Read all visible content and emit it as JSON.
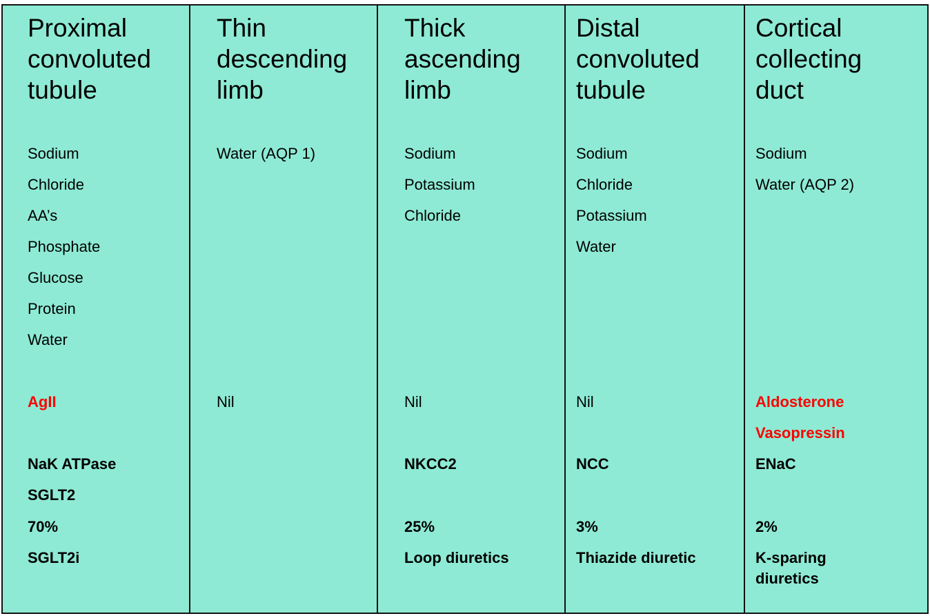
{
  "colors": {
    "background": "#8EEAD4",
    "highlight": "#FF0000",
    "border": "#111111"
  },
  "columns": [
    {
      "header": [
        "Proximal",
        "convoluted",
        "tubule"
      ],
      "reabsorbed": [
        "Sodium",
        "Chloride",
        "AA’s",
        "Phosphate",
        "Glucose",
        "Protein",
        "Water"
      ],
      "regulators": [
        "AgII"
      ],
      "transporters": [
        "NaK ATPase",
        "SGLT2"
      ],
      "percentage": "70%",
      "drug": "SGLT2i"
    },
    {
      "header": [
        "Thin",
        "descending",
        "limb"
      ],
      "reabsorbed": [
        "Water (AQP 1)"
      ],
      "regulators": [
        "Nil"
      ],
      "transporters": [],
      "percentage": "",
      "drug": ""
    },
    {
      "header": [
        "Thick",
        "ascending",
        "limb"
      ],
      "reabsorbed": [
        "Sodium",
        "Potassium",
        "Chloride"
      ],
      "regulators": [
        "Nil"
      ],
      "transporters": [
        "NKCC2"
      ],
      "percentage": "25%",
      "drug": "Loop diuretics"
    },
    {
      "header": [
        "Distal",
        "convoluted",
        "tubule"
      ],
      "reabsorbed": [
        "Sodium",
        "Chloride",
        "Potassium",
        "Water"
      ],
      "regulators": [
        "Nil"
      ],
      "transporters": [
        "NCC"
      ],
      "percentage": "3%",
      "drug": "Thiazide diuretic"
    },
    {
      "header": [
        "Cortical",
        "collecting",
        "duct"
      ],
      "reabsorbed": [
        "Sodium",
        "Water (AQP 2)"
      ],
      "regulators": [
        "Aldosterone",
        "Vasopressin"
      ],
      "transporters": [
        "ENaC"
      ],
      "percentage": "2%",
      "drug": "K-sparing diuretics"
    }
  ]
}
